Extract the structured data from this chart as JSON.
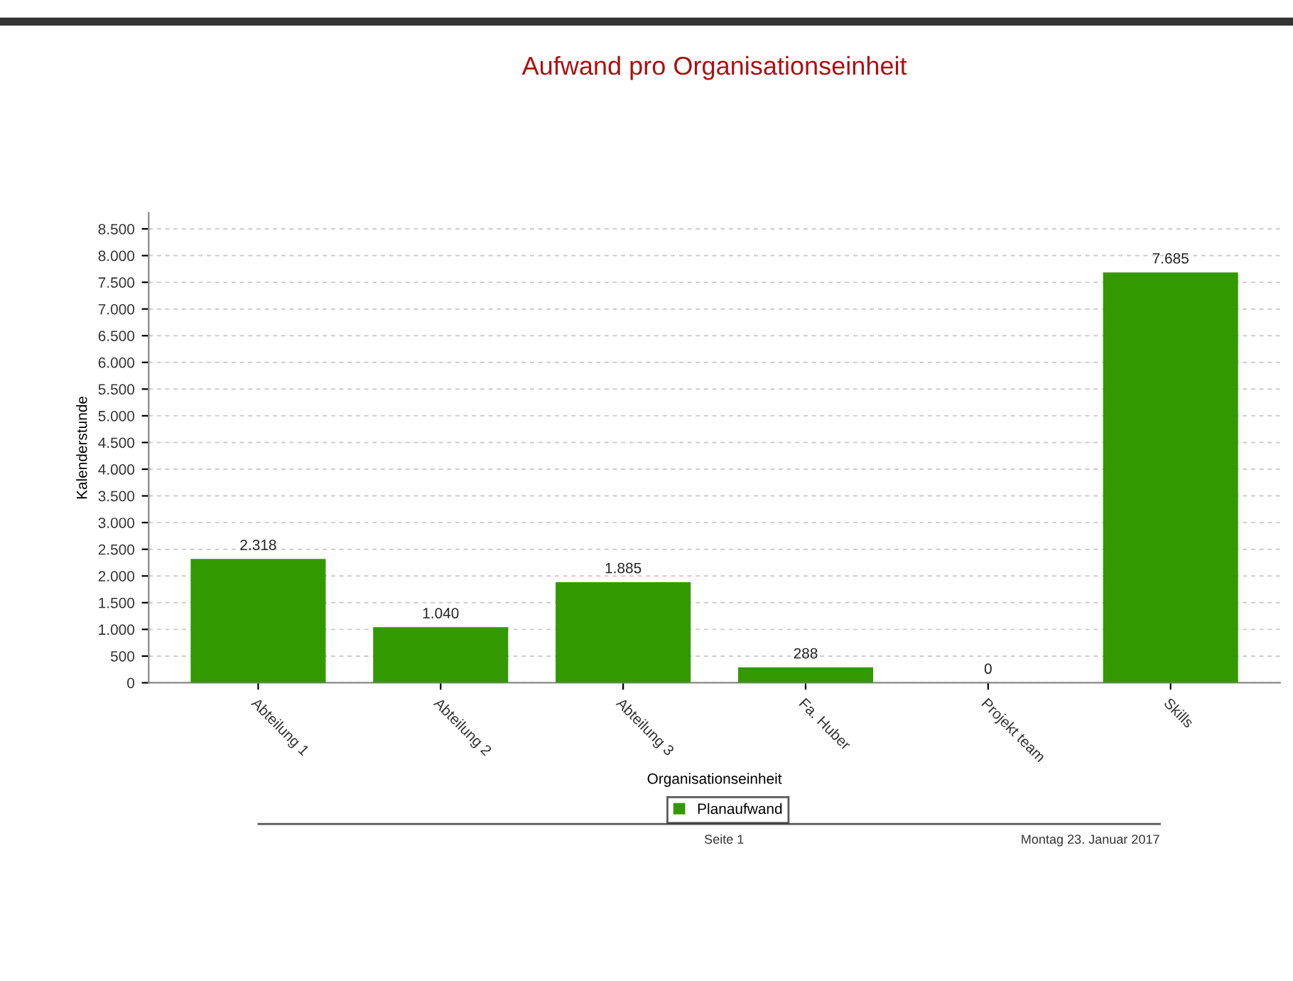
{
  "chart_data": {
    "type": "bar",
    "title": "Aufwand pro Organisationseinheit",
    "xlabel": "Organisationseinheit",
    "ylabel": "Kalenderstunde",
    "categories": [
      "Abteilung 1",
      "Abteilung 2",
      "Abteilung 3",
      "Fa. Huber",
      "Projekt team",
      "Skills"
    ],
    "series": [
      {
        "name": "Planaufwand",
        "color": "#339900",
        "values": [
          2318,
          1040,
          1885,
          288,
          0,
          7685
        ]
      }
    ],
    "value_labels": [
      "2.318",
      "1.040",
      "1.885",
      "288",
      "0",
      "7.685"
    ],
    "ylim": [
      0,
      8800
    ],
    "yticks": [
      0,
      500,
      {
        "value": 1000,
        "label": "1.000"
      },
      {
        "value": 1500,
        "label": "1.500"
      },
      {
        "value": 2000,
        "label": "2.000"
      },
      {
        "value": 2500,
        "label": "2.500"
      },
      {
        "value": 3000,
        "label": "3.000"
      },
      {
        "value": 3500,
        "label": "3.500"
      },
      {
        "value": 4000,
        "label": "4.000"
      },
      {
        "value": 4500,
        "label": "4.500"
      },
      {
        "value": 5000,
        "label": "5.000"
      },
      {
        "value": 5500,
        "label": "5.500"
      },
      {
        "value": 6000,
        "label": "6.000"
      },
      {
        "value": 6500,
        "label": "6.500"
      },
      {
        "value": 7000,
        "label": "7.000"
      },
      {
        "value": 7500,
        "label": "7.500"
      },
      {
        "value": 8000,
        "label": "8.000"
      },
      {
        "value": 8500,
        "label": "8.500"
      }
    ],
    "grid": "y",
    "legend": "bottom",
    "annotations": [
      "Seite 1",
      "Montag 23. Januar 2017"
    ]
  }
}
